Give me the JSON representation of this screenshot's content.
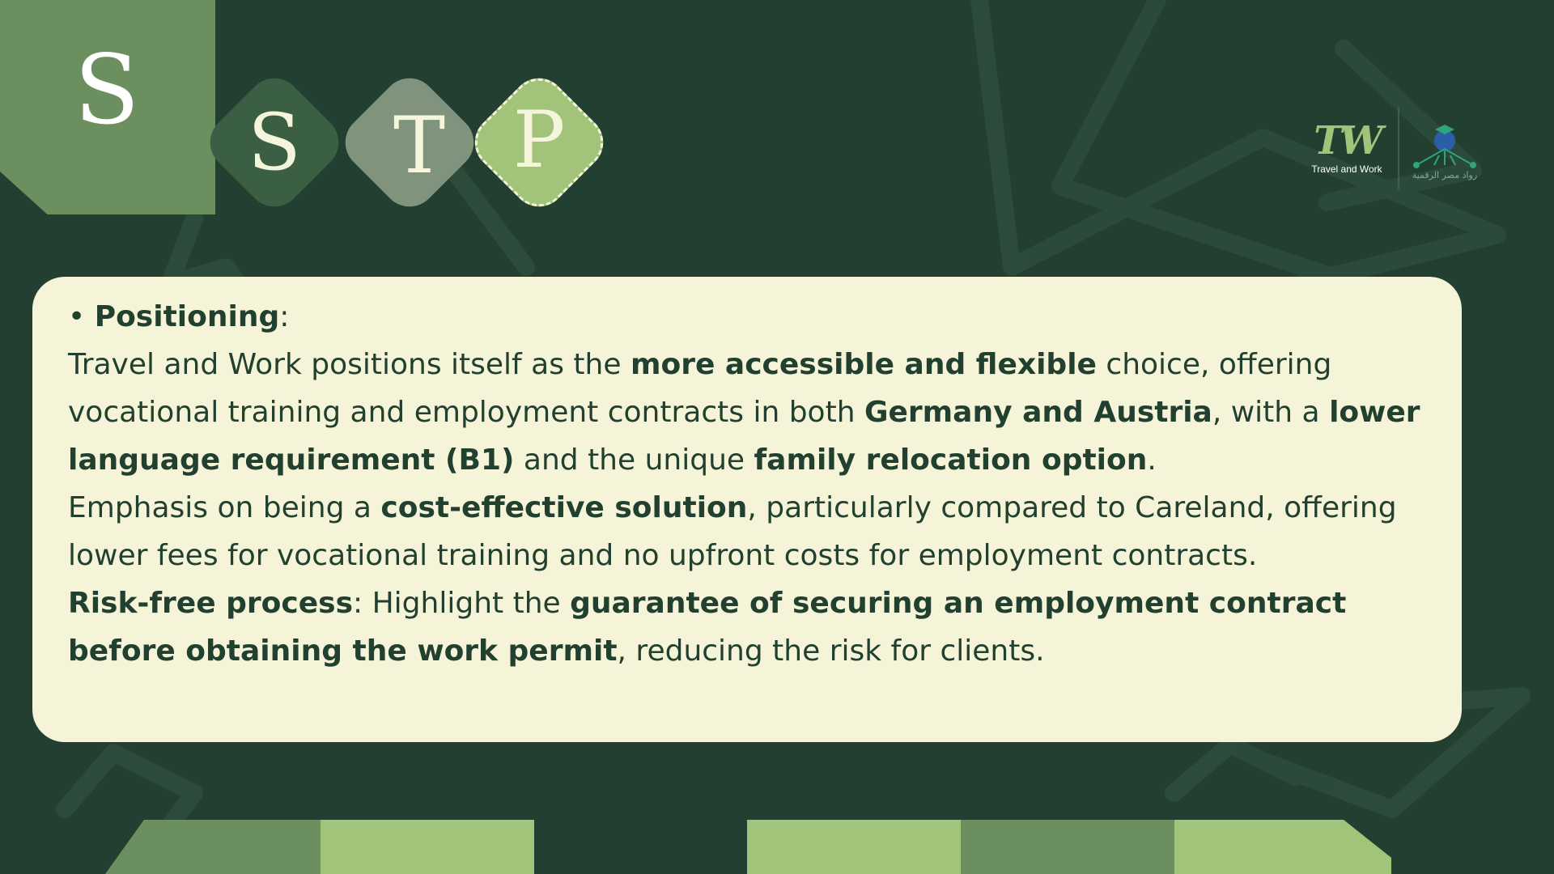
{
  "header": {
    "big_letter": "S",
    "letters": [
      "S",
      "T",
      "P"
    ]
  },
  "logo": {
    "tw_mark": "TW",
    "tw_text": "Travel and Work",
    "partner_text": "رواد مصر الرقمية"
  },
  "content": {
    "heading": "Positioning",
    "heading_suffix": ":",
    "bullet": "•",
    "p1": {
      "t1": "Travel and Work positions itself as the ",
      "b1": "more accessible and flexible",
      "t2": " choice, offering vocational training and employment contracts in both ",
      "b2": "Germany and Austria",
      "t3": ", with a ",
      "b3": "lower language requirement (B1)",
      "t4": " and the unique ",
      "b4": "family relocation option",
      "t5": "."
    },
    "p2": {
      "t1": "Emphasis on being a ",
      "b1": "cost-effective solution",
      "t2": ", particularly compared to Careland, offering lower fees for vocational training and no upfront costs for employment contracts."
    },
    "p3": {
      "b1": "Risk-free process",
      "t1": ": Highlight the ",
      "b2": "guarantee of securing an employment contract before obtaining the work permit",
      "t2": ", reducing the risk for clients."
    }
  },
  "colors": {
    "background": "#233f32",
    "card": "#f5f4d8",
    "text": "#22402f",
    "tile_dark": "#3a5f43",
    "tile_mid": "#80947d",
    "tile_light": "#a2c37a",
    "tile_big": "#6b8f5e"
  }
}
